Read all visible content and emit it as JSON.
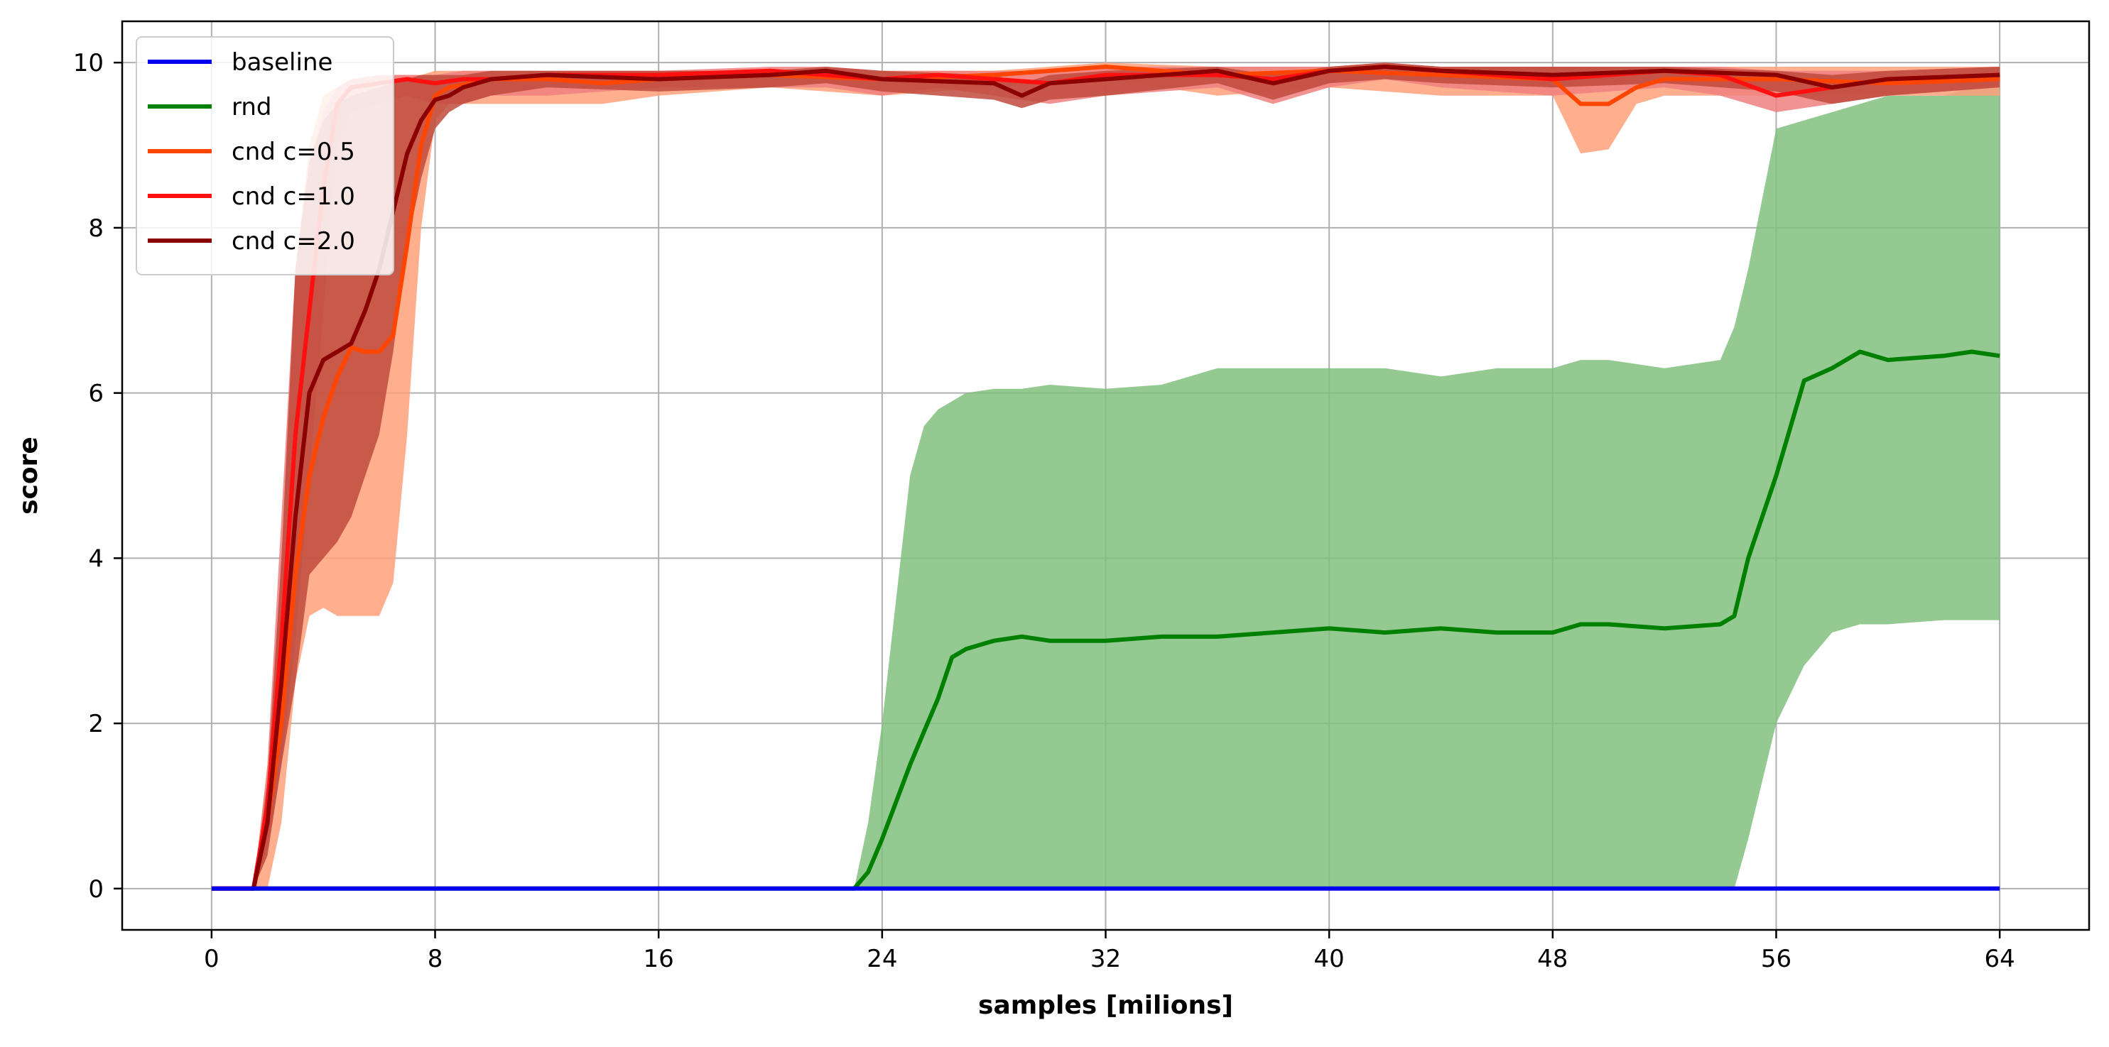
{
  "chart_data": {
    "type": "line",
    "title": "",
    "xlabel": "samples [milions]",
    "ylabel": "score",
    "xlim": [
      -3.2,
      67.2
    ],
    "ylim": [
      -0.5,
      10.5
    ],
    "xticks": [
      0,
      8,
      16,
      24,
      32,
      40,
      48,
      56,
      64
    ],
    "yticks": [
      0,
      2,
      4,
      6,
      8,
      10
    ],
    "grid": true,
    "legend_position": "top-left",
    "series": [
      {
        "name": "baseline",
        "color": "#0000ee",
        "x": [
          0,
          64
        ],
        "y": [
          0,
          0
        ]
      },
      {
        "name": "rnd",
        "color": "#008000",
        "band_color": "#81c07f",
        "x": [
          0,
          23,
          23.5,
          24,
          25,
          25.5,
          26,
          26.5,
          27,
          28,
          29,
          30,
          32,
          34,
          36,
          38,
          40,
          42,
          44,
          46,
          48,
          49,
          50,
          52,
          54,
          54.5,
          55,
          56,
          57,
          58,
          59,
          60,
          62,
          63,
          64
        ],
        "y": [
          0,
          0,
          0.2,
          0.6,
          1.5,
          1.9,
          2.3,
          2.8,
          2.9,
          3.0,
          3.05,
          3.0,
          3.0,
          3.05,
          3.05,
          3.1,
          3.15,
          3.1,
          3.15,
          3.1,
          3.1,
          3.2,
          3.2,
          3.15,
          3.2,
          3.3,
          4.0,
          5.0,
          6.15,
          6.3,
          6.5,
          6.4,
          6.45,
          6.5,
          6.45
        ],
        "band_upper": [
          0,
          0,
          0.8,
          2.0,
          5.0,
          5.6,
          5.8,
          5.9,
          6.0,
          6.05,
          6.05,
          6.1,
          6.05,
          6.1,
          6.3,
          6.3,
          6.3,
          6.3,
          6.2,
          6.3,
          6.3,
          6.4,
          6.4,
          6.3,
          6.4,
          6.8,
          7.5,
          9.2,
          9.3,
          9.4,
          9.5,
          9.6,
          9.6,
          9.7,
          9.7
        ],
        "band_lower": [
          0,
          0,
          0,
          0,
          0,
          0,
          0,
          0,
          0,
          0,
          0,
          0,
          0,
          0,
          0,
          0,
          0,
          0,
          0,
          0,
          0,
          0,
          0,
          0,
          0,
          0,
          0.6,
          2.0,
          2.7,
          3.1,
          3.2,
          3.2,
          3.25,
          3.25,
          3.25
        ]
      },
      {
        "name": "cnd c=0.5",
        "color": "#ff4500",
        "band_color": "#ffa07a",
        "x": [
          0,
          1.5,
          2,
          2.5,
          3,
          3.5,
          4,
          4.5,
          5,
          5.5,
          6,
          6.5,
          7,
          7.5,
          8,
          8.5,
          10,
          12,
          14,
          16,
          20,
          24,
          28,
          32,
          36,
          40,
          44,
          48,
          49,
          50,
          51,
          52,
          56,
          60,
          64
        ],
        "y": [
          0,
          0,
          0.8,
          2.0,
          3.8,
          5.0,
          5.7,
          6.2,
          6.55,
          6.5,
          6.5,
          6.7,
          7.8,
          9.0,
          9.6,
          9.7,
          9.8,
          9.8,
          9.75,
          9.8,
          9.85,
          9.8,
          9.85,
          9.95,
          9.85,
          9.9,
          9.85,
          9.8,
          9.5,
          9.5,
          9.7,
          9.8,
          9.8,
          9.75,
          9.8
        ],
        "band_upper": [
          0,
          0,
          1.5,
          4.0,
          7.5,
          9.0,
          9.6,
          9.7,
          9.8,
          9.8,
          9.8,
          9.85,
          9.85,
          9.85,
          9.9,
          9.9,
          9.9,
          9.9,
          9.9,
          9.9,
          9.9,
          9.9,
          9.9,
          10.0,
          9.95,
          9.95,
          9.95,
          9.95,
          9.95,
          9.95,
          9.95,
          9.95,
          9.95,
          9.95,
          9.95
        ],
        "band_lower": [
          0,
          0,
          0,
          0.8,
          2.5,
          3.3,
          3.4,
          3.3,
          3.3,
          3.3,
          3.3,
          3.7,
          5.5,
          8.0,
          9.3,
          9.5,
          9.5,
          9.5,
          9.5,
          9.6,
          9.7,
          9.6,
          9.7,
          9.8,
          9.6,
          9.7,
          9.6,
          9.6,
          8.9,
          8.95,
          9.5,
          9.6,
          9.6,
          9.6,
          9.6
        ]
      },
      {
        "name": "cnd c=1.0",
        "color": "#ff1010",
        "band_color": "#f08080",
        "x": [
          0,
          1.5,
          2,
          2.5,
          3,
          3.5,
          4,
          4.5,
          5,
          6,
          7,
          8,
          9,
          10,
          12,
          16,
          20,
          22,
          24,
          26,
          28,
          30,
          32,
          36,
          38,
          40,
          42,
          44,
          48,
          52,
          54,
          56,
          58,
          60,
          64
        ],
        "y": [
          0,
          0,
          1.0,
          3.0,
          5.5,
          7.0,
          8.5,
          9.5,
          9.7,
          9.75,
          9.8,
          9.75,
          9.8,
          9.8,
          9.85,
          9.85,
          9.9,
          9.85,
          9.8,
          9.85,
          9.8,
          9.75,
          9.85,
          9.85,
          9.8,
          9.9,
          9.95,
          9.9,
          9.8,
          9.9,
          9.85,
          9.6,
          9.7,
          9.8,
          9.85
        ],
        "band_upper": [
          0,
          0,
          1.5,
          4.5,
          7.5,
          8.8,
          9.4,
          9.7,
          9.8,
          9.85,
          9.85,
          9.85,
          9.9,
          9.9,
          9.9,
          9.9,
          9.95,
          9.95,
          9.9,
          9.9,
          9.9,
          9.9,
          9.95,
          9.95,
          9.95,
          9.95,
          10.0,
          9.95,
          9.95,
          9.95,
          9.95,
          9.9,
          9.9,
          9.9,
          9.95
        ],
        "band_lower": [
          0,
          0,
          0.5,
          1.5,
          3.0,
          5.0,
          7.0,
          9.0,
          9.4,
          9.5,
          9.6,
          9.5,
          9.5,
          9.6,
          9.6,
          9.7,
          9.7,
          9.7,
          9.6,
          9.7,
          9.6,
          9.5,
          9.6,
          9.7,
          9.5,
          9.7,
          9.8,
          9.7,
          9.6,
          9.7,
          9.6,
          9.4,
          9.5,
          9.6,
          9.7
        ]
      },
      {
        "name": "cnd c=2.0",
        "color": "#8b0000",
        "band_color": "#c04a3c",
        "x": [
          0,
          1.5,
          2,
          2.5,
          3,
          3.5,
          4,
          4.5,
          5,
          5.5,
          6,
          6.5,
          7,
          7.5,
          8,
          8.5,
          9,
          10,
          12,
          16,
          20,
          22,
          24,
          28,
          29,
          30,
          32,
          36,
          38,
          40,
          42,
          44,
          48,
          52,
          56,
          58,
          60,
          64
        ],
        "y": [
          0,
          0,
          0.8,
          2.5,
          4.5,
          6.0,
          6.4,
          6.5,
          6.6,
          7.0,
          7.5,
          8.2,
          8.9,
          9.3,
          9.55,
          9.6,
          9.7,
          9.8,
          9.85,
          9.8,
          9.85,
          9.9,
          9.8,
          9.75,
          9.6,
          9.75,
          9.8,
          9.9,
          9.75,
          9.9,
          9.95,
          9.9,
          9.85,
          9.9,
          9.85,
          9.7,
          9.8,
          9.85
        ],
        "band_upper": [
          0,
          0,
          1.3,
          4.0,
          7.5,
          8.8,
          9.3,
          9.5,
          9.6,
          9.65,
          9.7,
          9.75,
          9.8,
          9.85,
          9.85,
          9.85,
          9.85,
          9.9,
          9.9,
          9.9,
          9.9,
          9.95,
          9.9,
          9.85,
          9.75,
          9.85,
          9.9,
          9.95,
          9.85,
          9.95,
          10.0,
          9.95,
          9.95,
          9.95,
          9.9,
          9.85,
          9.9,
          9.95
        ],
        "band_lower": [
          0,
          0,
          0.4,
          1.5,
          2.5,
          3.8,
          4.0,
          4.2,
          4.5,
          5.0,
          5.5,
          6.5,
          7.8,
          8.6,
          9.2,
          9.4,
          9.5,
          9.6,
          9.7,
          9.65,
          9.7,
          9.75,
          9.65,
          9.55,
          9.45,
          9.55,
          9.6,
          9.75,
          9.55,
          9.75,
          9.8,
          9.75,
          9.7,
          9.75,
          9.65,
          9.5,
          9.6,
          9.7
        ]
      }
    ]
  }
}
